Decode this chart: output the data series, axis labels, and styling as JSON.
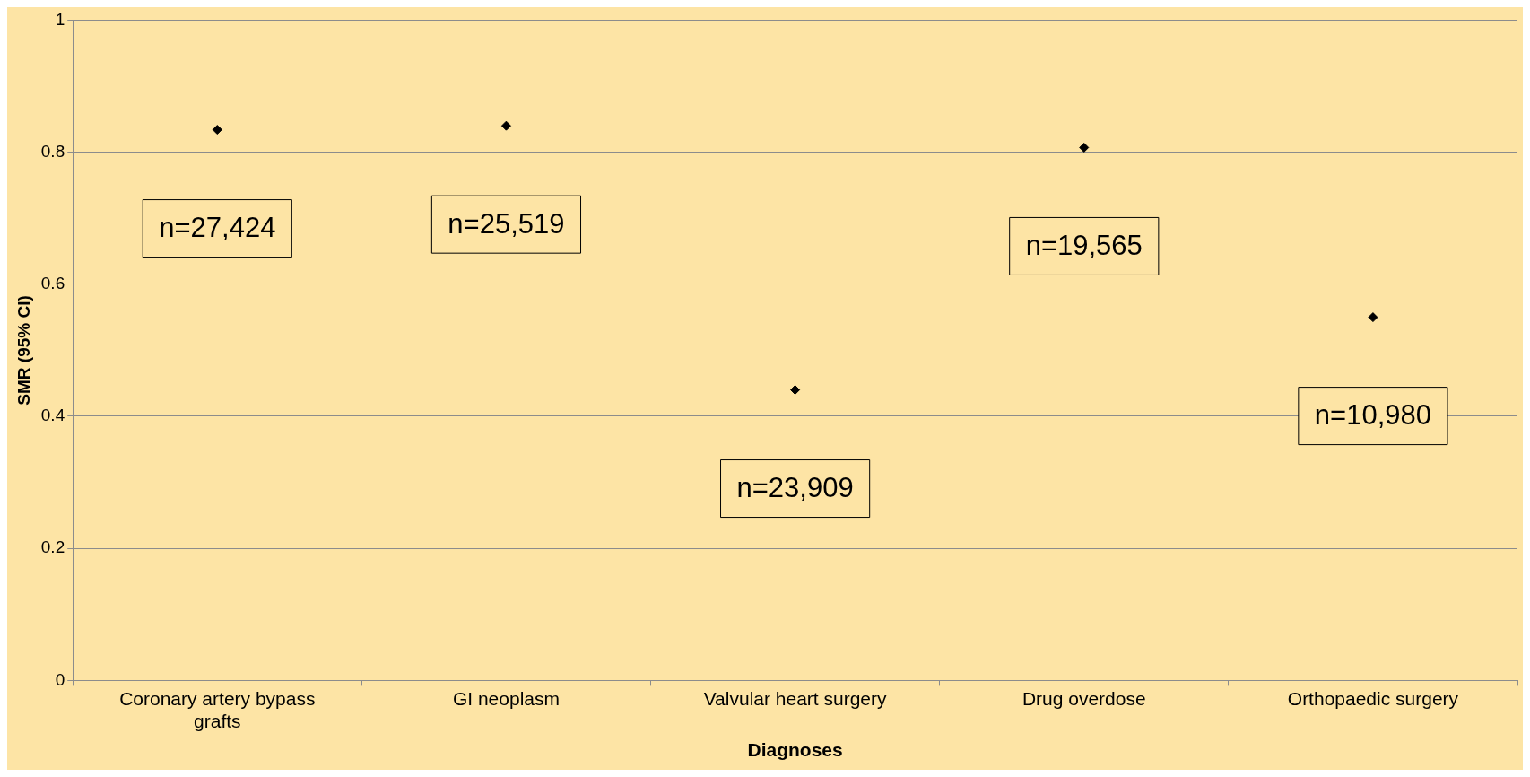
{
  "chart_data": {
    "type": "scatter",
    "xlabel": "Diagnoses",
    "ylabel": "SMR (95% CI)",
    "categories": [
      "Coronary artery bypass grafts",
      "GI neoplasm",
      "Valvular heart surgery",
      "Drug overdose",
      "Orthopaedic surgery"
    ],
    "series": [
      {
        "color": "#000000",
        "values": [
          0.834,
          0.84,
          0.44,
          0.807,
          0.55
        ]
      }
    ],
    "ylim": [
      0,
      1
    ],
    "yticks": [
      0,
      0.2,
      0.4,
      0.6,
      0.8,
      1
    ],
    "grid": "y",
    "legend": false,
    "marker": "diamond",
    "annotations": [
      "n=27,424",
      "n=25,519",
      "n=23,909",
      "n=19,565",
      "n=10,980"
    ]
  }
}
